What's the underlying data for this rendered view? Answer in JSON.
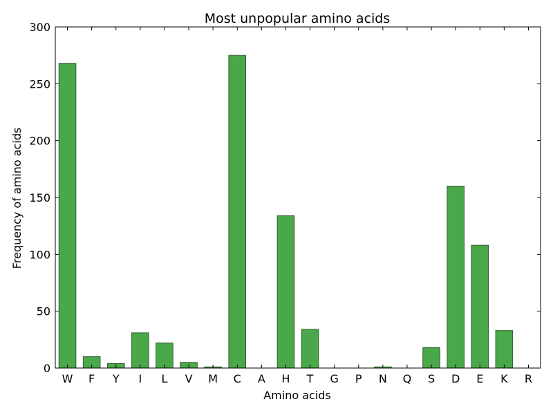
{
  "chart_data": {
    "type": "bar",
    "title": "Most unpopular amino acids",
    "xlabel": "Amino acids",
    "ylabel": "Frequency of amino acids",
    "categories": [
      "W",
      "F",
      "Y",
      "I",
      "L",
      "V",
      "M",
      "C",
      "A",
      "H",
      "T",
      "G",
      "P",
      "N",
      "Q",
      "S",
      "D",
      "E",
      "K",
      "R"
    ],
    "values": [
      268,
      10,
      4,
      31,
      22,
      5,
      1,
      275,
      0,
      134,
      34,
      0,
      0,
      1,
      0,
      18,
      160,
      108,
      33,
      0
    ],
    "ylim": [
      0,
      300
    ],
    "yticks": [
      0,
      50,
      100,
      150,
      200,
      250,
      300
    ],
    "grid": false,
    "legend": "none",
    "bar_color": "#4aa84a",
    "bar_edge_color": "#2f5e2f"
  }
}
